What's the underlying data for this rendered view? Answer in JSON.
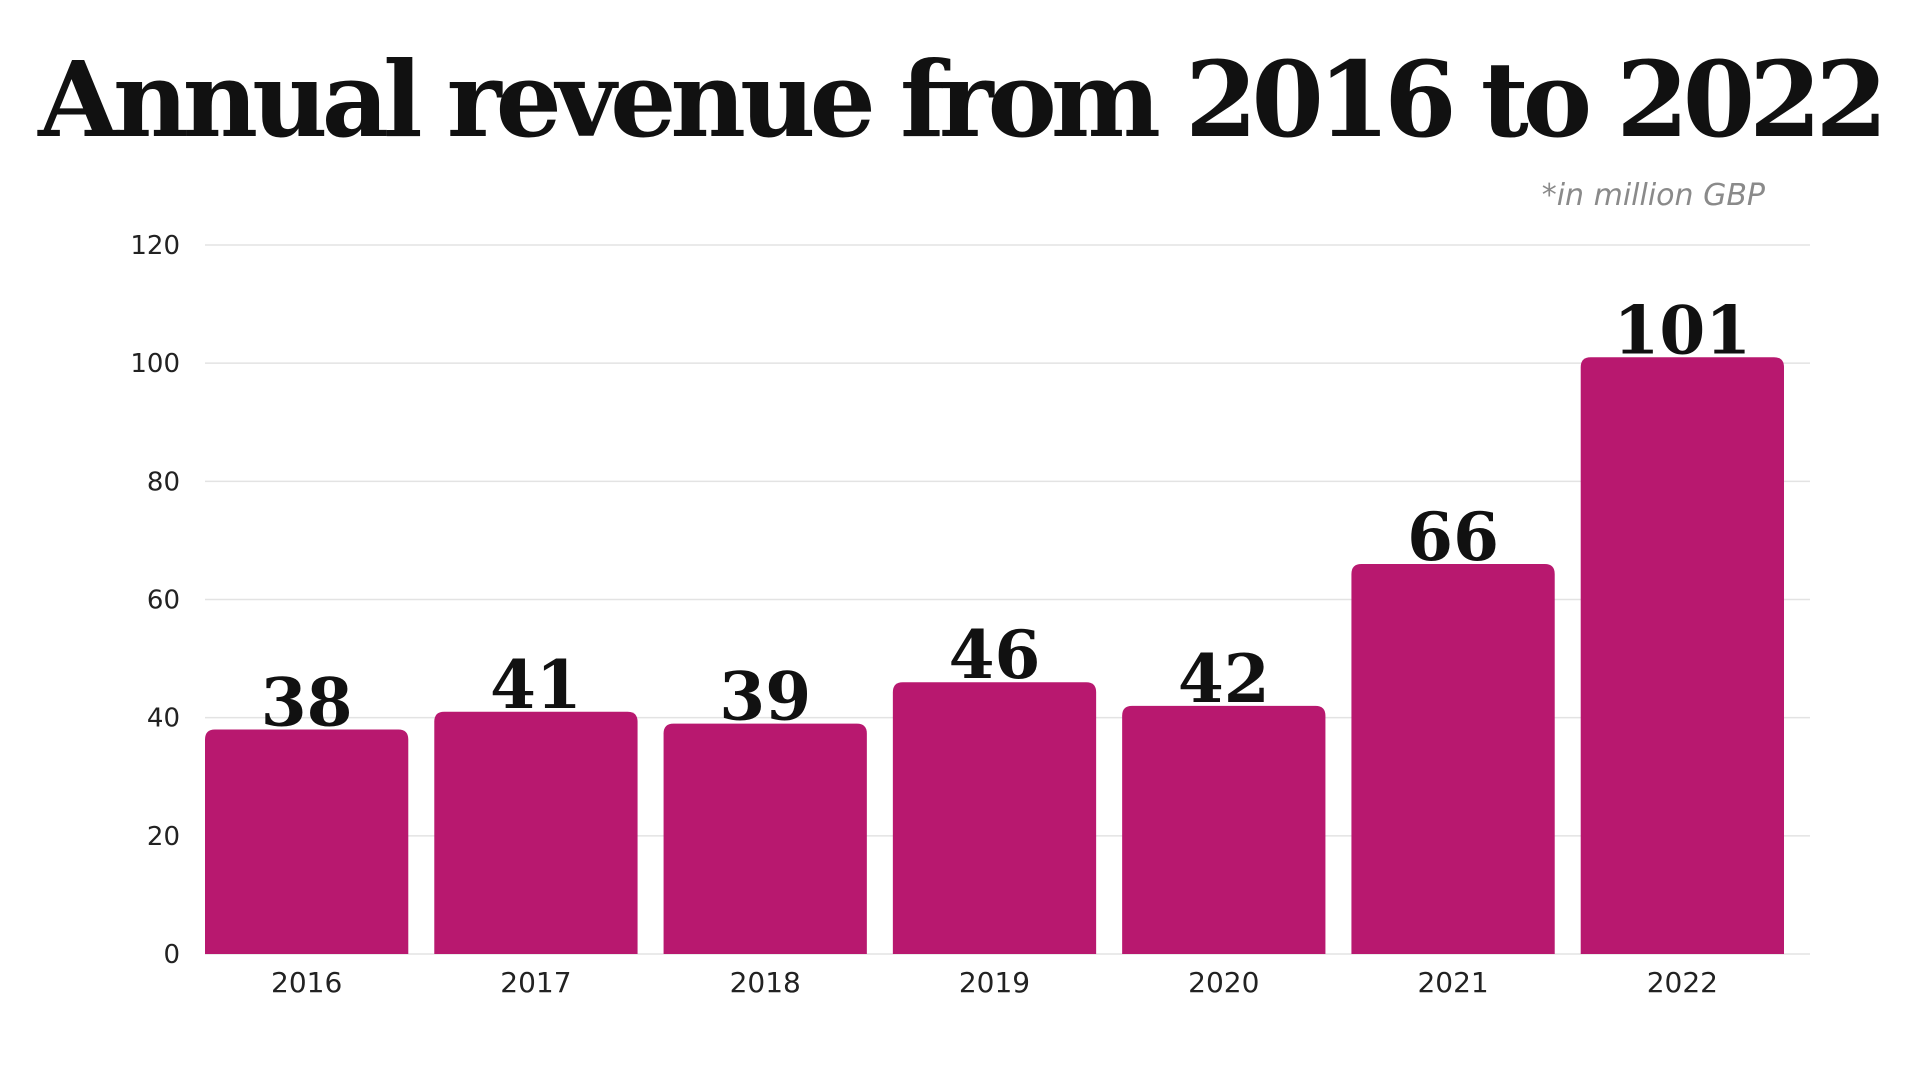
{
  "chart_data": {
    "type": "bar",
    "title": "Annual revenue from 2016 to 2022",
    "note": "*in million GBP",
    "categories": [
      "2016",
      "2017",
      "2018",
      "2019",
      "2020",
      "2021",
      "2022"
    ],
    "values": [
      38,
      41,
      39,
      46,
      42,
      66,
      101
    ],
    "data_labels": [
      "38",
      "41",
      "39",
      "46",
      "42",
      "66",
      "101"
    ],
    "y_ticks": [
      "0",
      "20",
      "40",
      "60",
      "80",
      "100",
      "120"
    ],
    "ylim": [
      0,
      120
    ],
    "grid": true,
    "bar_color": "#B8186F",
    "grid_color": "#e3e3e3"
  }
}
